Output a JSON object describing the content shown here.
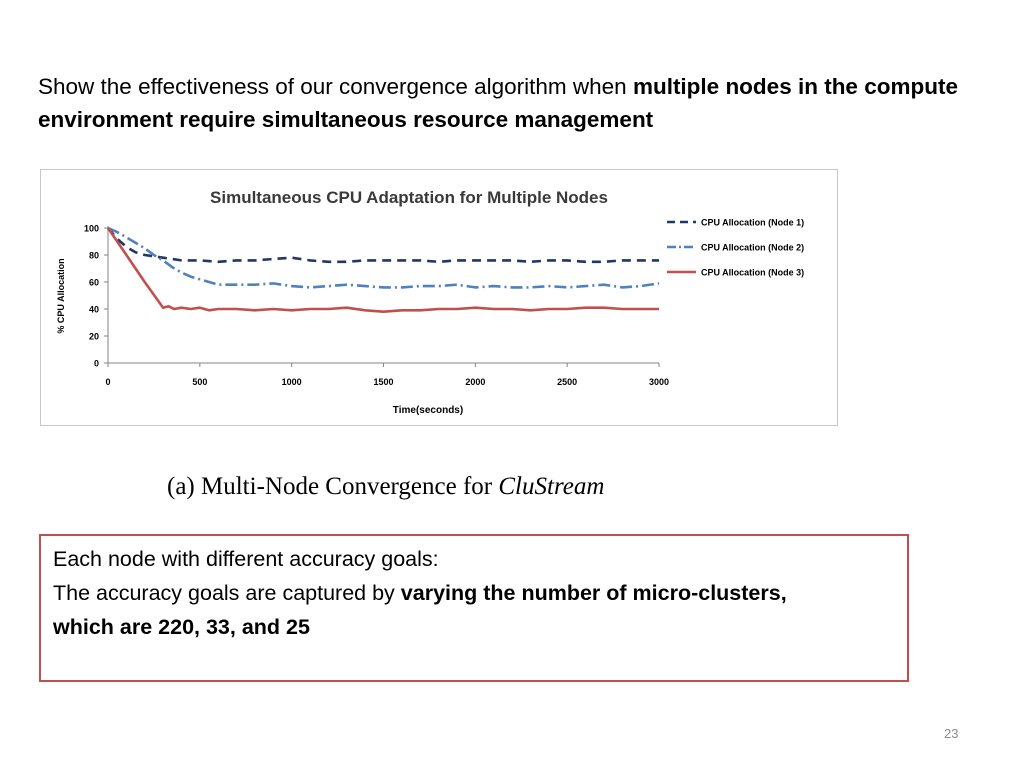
{
  "slide": {
    "intro_lead": "Show the effectiveness of our convergence algorithm when ",
    "intro_bold": "multiple nodes in the compute environment require simultaneous resource management",
    "caption_prefix": "(a) Multi-Node Convergence for ",
    "caption_italic": "CluStream",
    "note_line1": "Each node with different accuracy goals:",
    "note_line2_plain": "The accuracy goals are captured by ",
    "note_line2_bold": "varying the number of micro-clusters,",
    "note_line3_bold": "which are 220, 33, and 25",
    "page_number": "23",
    "note_border_color": "#c0504d"
  },
  "chart_data": {
    "type": "line",
    "title": "Simultaneous CPU Adaptation for Multiple Nodes",
    "xlabel": "Time(seconds)",
    "ylabel": "% CPU Allocation",
    "xlim": [
      0,
      3000
    ],
    "ylim": [
      0,
      100
    ],
    "xticks": [
      0,
      500,
      1000,
      1500,
      2000,
      2500,
      3000
    ],
    "yticks": [
      0,
      20,
      40,
      60,
      80,
      100
    ],
    "grid": false,
    "legend_position": "right",
    "series": [
      {
        "name": "CPU Allocation (Node 1)",
        "color": "#1f3864",
        "style": "dashed",
        "x": [
          0,
          50,
          100,
          150,
          200,
          250,
          300,
          350,
          400,
          500,
          600,
          700,
          800,
          900,
          1000,
          1100,
          1200,
          1300,
          1400,
          1500,
          1600,
          1700,
          1800,
          1900,
          2000,
          2100,
          2200,
          2300,
          2400,
          2500,
          2600,
          2700,
          2800,
          2900,
          3000
        ],
        "y": [
          100,
          92,
          86,
          82,
          80,
          79,
          78,
          77,
          76,
          76,
          75,
          76,
          76,
          77,
          78,
          76,
          75,
          75,
          76,
          76,
          76,
          76,
          75,
          76,
          76,
          76,
          76,
          75,
          76,
          76,
          75,
          75,
          76,
          76,
          76
        ]
      },
      {
        "name": "CPU Allocation (Node 2)",
        "color": "#4f81bd",
        "style": "dash-dot",
        "x": [
          0,
          50,
          100,
          150,
          200,
          250,
          300,
          350,
          400,
          450,
          500,
          550,
          600,
          700,
          800,
          900,
          1000,
          1100,
          1200,
          1300,
          1400,
          1500,
          1600,
          1700,
          1800,
          1900,
          2000,
          2100,
          2200,
          2300,
          2400,
          2500,
          2600,
          2700,
          2800,
          2900,
          3000
        ],
        "y": [
          100,
          97,
          93,
          89,
          85,
          80,
          76,
          71,
          67,
          64,
          62,
          60,
          58,
          58,
          58,
          59,
          57,
          56,
          57,
          58,
          57,
          56,
          56,
          57,
          57,
          58,
          56,
          57,
          56,
          56,
          57,
          56,
          57,
          58,
          56,
          57,
          59
        ]
      },
      {
        "name": "CPU Allocation (Node 3)",
        "color": "#c0504d",
        "style": "solid",
        "x": [
          0,
          100,
          200,
          300,
          330,
          360,
          400,
          450,
          500,
          550,
          600,
          700,
          800,
          900,
          1000,
          1100,
          1200,
          1300,
          1400,
          1500,
          1600,
          1700,
          1800,
          1900,
          2000,
          2100,
          2200,
          2300,
          2400,
          2500,
          2600,
          2700,
          2800,
          2900,
          3000
        ],
        "y": [
          100,
          80,
          60,
          41,
          42,
          40,
          41,
          40,
          41,
          39,
          40,
          40,
          39,
          40,
          39,
          40,
          40,
          41,
          39,
          38,
          39,
          39,
          40,
          40,
          41,
          40,
          40,
          39,
          40,
          40,
          41,
          41,
          40,
          40,
          40
        ]
      }
    ]
  }
}
